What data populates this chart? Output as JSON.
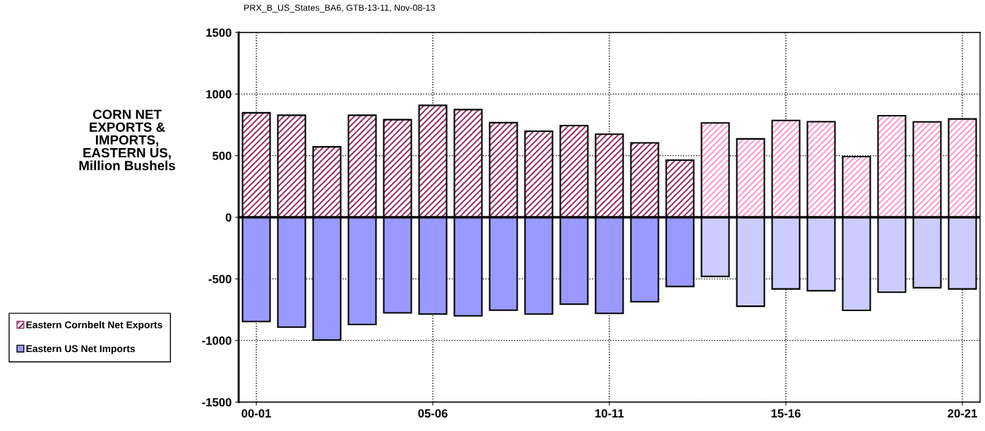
{
  "chart_data": {
    "type": "bar",
    "title": "CORN NET\nEXPORTS &\nIMPORTS,\nEASTERN US,\nMillion Bushels",
    "annotations": [
      "PRX_B_US_States_BA6, GTB-13-11, Nov-08-13"
    ],
    "categories": [
      "00-01",
      null,
      null,
      null,
      null,
      "05-06",
      null,
      null,
      null,
      null,
      "10-11",
      null,
      null,
      null,
      null,
      "15-16",
      null,
      null,
      null,
      null,
      "20-21"
    ],
    "series": [
      {
        "name": "Eastern Cornbelt Net Exports",
        "color": "#993366",
        "colors": [
          "#993366",
          "#993366",
          "#993366",
          "#993366",
          "#993366",
          "#993366",
          "#993366",
          "#993366",
          "#993366",
          "#993366",
          "#993366",
          "#993366",
          "#993366",
          "#ff99cc",
          "#ff99cc",
          "#ff99cc",
          "#ff99cc",
          "#ff99cc",
          "#ff99cc",
          "#ff99cc",
          "#ff99cc"
        ],
        "values": [
          848,
          828,
          572,
          828,
          792,
          908,
          874,
          768,
          698,
          744,
          674,
          604,
          464,
          766,
          636,
          786,
          776,
          492,
          824,
          774,
          798
        ]
      },
      {
        "name": "Eastern US Net Imports",
        "color": "#9999ff",
        "colors": [
          "#9999ff",
          "#9999ff",
          "#9999ff",
          "#9999ff",
          "#9999ff",
          "#9999ff",
          "#9999ff",
          "#9999ff",
          "#9999ff",
          "#9999ff",
          "#9999ff",
          "#9999ff",
          "#9999ff",
          "#ccccff",
          "#ccccff",
          "#ccccff",
          "#ccccff",
          "#ccccff",
          "#ccccff",
          "#ccccff",
          "#ccccff"
        ],
        "values": [
          -846,
          -892,
          -996,
          -870,
          -776,
          -786,
          -800,
          -754,
          -786,
          -706,
          -780,
          -686,
          -562,
          -480,
          -722,
          -582,
          -596,
          -756,
          -608,
          -572,
          -582
        ]
      }
    ],
    "ylim": [
      -1500,
      1500
    ],
    "yticks": [
      -1500,
      -1000,
      -500,
      0,
      500,
      1000,
      1500
    ],
    "stacked": true,
    "grid": true,
    "legend": "left"
  }
}
